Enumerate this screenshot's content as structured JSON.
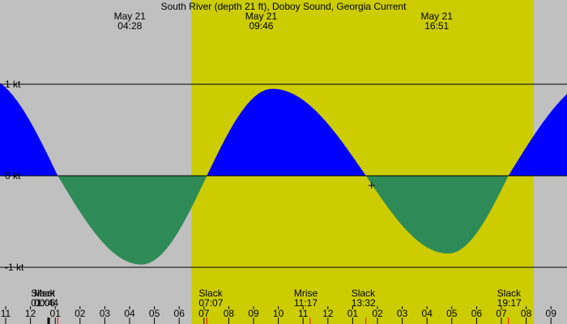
{
  "chart_data": {
    "type": "area",
    "title": "South River (depth 21 ft), Doboy Sound, Georgia Current",
    "unit": "kt",
    "ylim": [
      -1,
      1
    ],
    "y_ticks": [
      {
        "value": 1,
        "label": "1 kt"
      },
      {
        "value": 0,
        "label": "0 kt"
      },
      {
        "value": -1,
        "label": "-1 kt"
      }
    ],
    "x_range_hours": [
      -1.0,
      21.5
    ],
    "daylight_hours": [
      6.5,
      20.3
    ],
    "x_tick_labels": [
      "11",
      "12",
      "01",
      "02",
      "03",
      "04",
      "05",
      "06",
      "07",
      "08",
      "09",
      "10",
      "11",
      "12",
      "01",
      "02",
      "03",
      "04",
      "05",
      "06",
      "07",
      "08",
      "09"
    ],
    "x_tick_hours": [
      -1,
      0,
      1,
      2,
      3,
      4,
      5,
      6,
      7,
      8,
      9,
      10,
      11,
      12,
      13,
      14,
      15,
      16,
      17,
      18,
      19,
      20,
      21
    ],
    "extremes": [
      {
        "date": "May 21",
        "time": "04:28",
        "hour": 4.467,
        "value": -0.97
      },
      {
        "date": "May 21",
        "time": "09:46",
        "hour": 9.767,
        "value": 0.95
      },
      {
        "date": "May 21",
        "time": "16:51",
        "hour": 16.85,
        "value": -0.85
      }
    ],
    "events": [
      {
        "label": "Mset",
        "time": "00:44",
        "hour": 0.733
      },
      {
        "label": "Slack",
        "time": "01:06",
        "hour": 1.1
      },
      {
        "label": "Slack",
        "time": "07:07",
        "hour": 7.117
      },
      {
        "label": "Mrise",
        "time": "11:17",
        "hour": 11.283
      },
      {
        "label": "Slack",
        "time": "13:32",
        "hour": 13.533
      },
      {
        "label": "Slack",
        "time": "19:17",
        "hour": 19.283
      }
    ],
    "series": [
      {
        "color_flood": "#0000ff",
        "color_ebb": "#2e8b57"
      }
    ]
  },
  "colors": {
    "night": "#c0c0c0",
    "day": "#cccc00",
    "flood": "#0000ff",
    "ebb": "#2e8b57",
    "gridline": "#000000",
    "slack_tick": "#ff0000"
  }
}
